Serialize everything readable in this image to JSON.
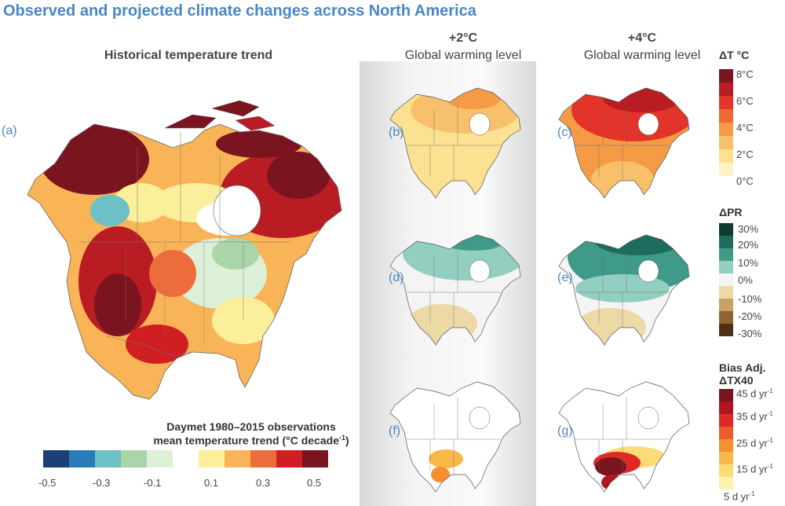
{
  "title": "Observed and projected climate changes across North America",
  "main_map": {
    "header": "Historical temperature trend",
    "panel_label": "(a)",
    "legend_title_line1": "Daymet 1980–2015 observations",
    "legend_title_line2_pre": "mean temperature trend (°C decade",
    "legend_title_line2_sup": "-1",
    "legend_title_line2_post": ")",
    "tick_labels": [
      "-0.5",
      "-0.3",
      "-0.1",
      "0.1",
      "0.3",
      "0.5"
    ],
    "colors": [
      "#1c3f75",
      "#2b7bb9",
      "#6cc0c6",
      "#a9d5a8",
      "#dcefd7",
      "#ffffff",
      "#fbef9b",
      "#f8b456",
      "#ed6c3c",
      "#d01f23",
      "#7a1520"
    ]
  },
  "columns": {
    "col2_line1": "+2°C",
    "col2_line2": "Global warming level",
    "col3_line1": "+4°C",
    "col3_line2": "Global warming level"
  },
  "panels": {
    "b": "(b)",
    "c": "(c)",
    "d": "(d)",
    "e": "(e)",
    "f": "(f)",
    "g": "(g)"
  },
  "legend_temp": {
    "title": "ΔT °C",
    "ticks": [
      "8°C",
      "6°C",
      "4°C",
      "2°C",
      "0°C"
    ],
    "colors": [
      "#7a1520",
      "#b91c22",
      "#e2342a",
      "#ef6a35",
      "#f59a45",
      "#f8c06a",
      "#fbe191",
      "#fdf4c4"
    ]
  },
  "legend_precip": {
    "title": "ΔPR",
    "ticks": [
      "30%",
      "20%",
      "10%",
      "0%",
      "-10%",
      "-20%",
      "-30%"
    ],
    "colors": [
      "#0f3b33",
      "#1d6c5e",
      "#3f9a89",
      "#93cfc1",
      "#f4f4f4",
      "#ecd9a6",
      "#c9a161",
      "#8f6430",
      "#4e3017"
    ]
  },
  "legend_tx40": {
    "title_line1": "Bias Adj.",
    "title_line2": "ΔTX40",
    "ticks": [
      "45 d yr",
      "35 d yr",
      "25 d yr",
      "15 d yr",
      "5 d yr"
    ],
    "tick_sup": "-1",
    "colors": [
      "#7a1520",
      "#b3151e",
      "#dc2b26",
      "#ec5a2e",
      "#f5902f",
      "#f9b948",
      "#fbdc76",
      "#fdf2b0"
    ]
  }
}
